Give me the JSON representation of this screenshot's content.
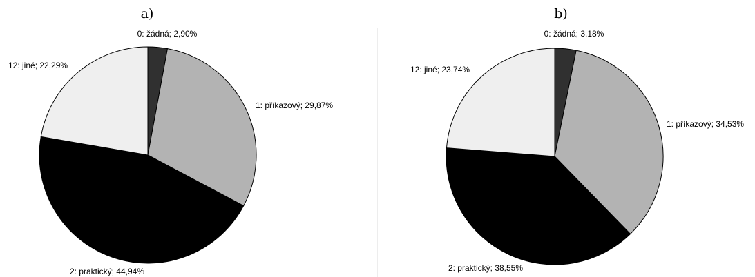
{
  "chart_data": [
    {
      "type": "pie",
      "title": "a)",
      "slices": [
        {
          "label": "0: žádná; 2,90%",
          "value": 2.9,
          "color": "#303030"
        },
        {
          "label": "1: příkazový; 29,87%",
          "value": 29.87,
          "color": "#b3b3b3"
        },
        {
          "label": "2: praktický; 44,94%",
          "value": 44.94,
          "color": "#000000"
        },
        {
          "label": "12: jiné; 22,29%",
          "value": 22.29,
          "color": "#efefef"
        }
      ]
    },
    {
      "type": "pie",
      "title": "b)",
      "slices": [
        {
          "label": "0: žádná; 3,18%",
          "value": 3.18,
          "color": "#303030"
        },
        {
          "label": "1: příkazový; 34,53%",
          "value": 34.53,
          "color": "#b3b3b3"
        },
        {
          "label": "2: praktický; 38,55%",
          "value": 38.55,
          "color": "#000000"
        },
        {
          "label": "12: jiné; 23,74%",
          "value": 23.74,
          "color": "#efefef"
        }
      ]
    }
  ]
}
